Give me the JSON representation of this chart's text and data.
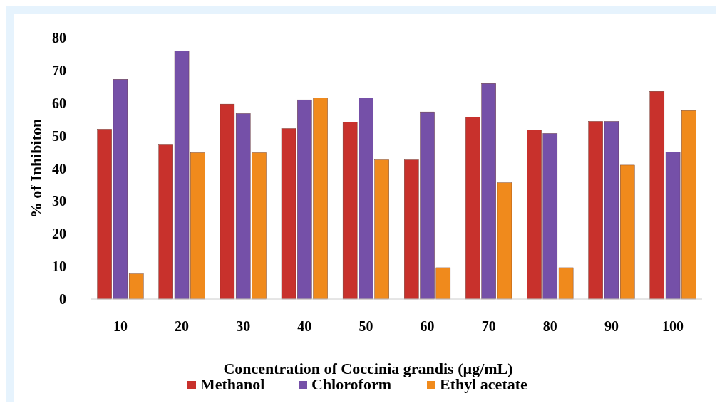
{
  "chart_data": {
    "type": "bar",
    "xlabel": "Concentration of Coccinia grandis (µg/mL)",
    "ylabel": "% of Inhibiton",
    "categories": [
      "10",
      "20",
      "30",
      "40",
      "50",
      "60",
      "70",
      "80",
      "90",
      "100"
    ],
    "series": [
      {
        "name": "Methanol",
        "color": "#c8312c",
        "values": [
          52,
          47.4,
          59.7,
          52.2,
          54.2,
          42.6,
          55.7,
          51.8,
          54.4,
          63.6
        ]
      },
      {
        "name": "Chloroform",
        "color": "#7550a8",
        "values": [
          67.3,
          76,
          56.8,
          61,
          61.6,
          57.3,
          66,
          50.7,
          54.4,
          45
        ]
      },
      {
        "name": "Ethyl acetate",
        "color": "#f08a1c",
        "values": [
          7.7,
          44.8,
          44.8,
          61.6,
          42.6,
          9.6,
          35.6,
          9.6,
          41,
          57.7
        ]
      }
    ],
    "ylim": [
      0,
      80
    ],
    "yticks": [
      0,
      10,
      20,
      30,
      40,
      50,
      60,
      70,
      80
    ],
    "grid": false,
    "legend": "bottom"
  }
}
